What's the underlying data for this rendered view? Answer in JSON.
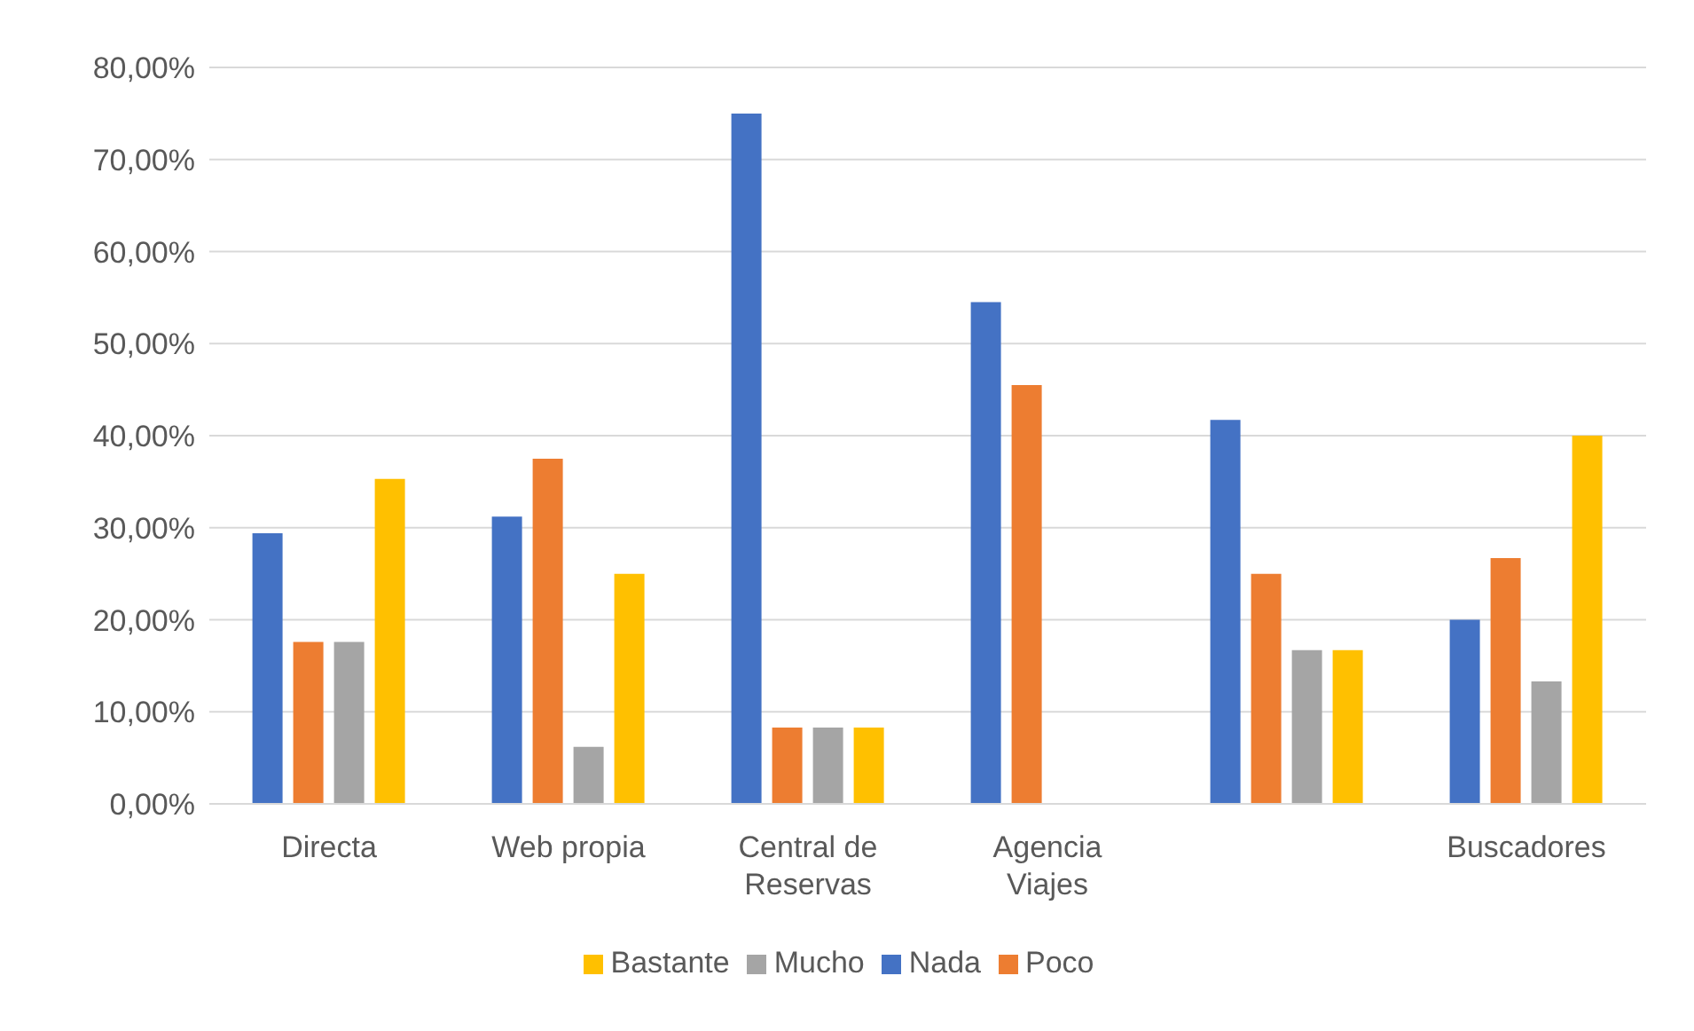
{
  "chart_data": {
    "type": "bar",
    "categories": [
      "Directa",
      "Web propia",
      "Central de Reservas",
      "Agencia Viajes",
      null,
      "Buscadores"
    ],
    "series": [
      {
        "name": "Nada",
        "color": "#4472c4",
        "values": [
          29.4,
          31.2,
          75.0,
          54.5,
          41.7,
          20.0
        ]
      },
      {
        "name": "Poco",
        "color": "#ed7d31",
        "values": [
          17.6,
          37.5,
          8.3,
          45.5,
          25.0,
          26.7
        ]
      },
      {
        "name": "Mucho",
        "color": "#a5a5a5",
        "values": [
          17.6,
          6.2,
          8.3,
          0,
          16.7,
          13.3
        ]
      },
      {
        "name": "Bastante",
        "color": "#ffc000",
        "values": [
          35.3,
          25.0,
          8.3,
          0,
          16.7,
          40.0
        ]
      }
    ],
    "ylim": [
      0,
      80
    ],
    "yticks": [
      {
        "value": 0,
        "label": "0,00%"
      },
      {
        "value": 10,
        "label": "10,00%"
      },
      {
        "value": 20,
        "label": "20,00%"
      },
      {
        "value": 30,
        "label": "30,00%"
      },
      {
        "value": 40,
        "label": "40,00%"
      },
      {
        "value": 50,
        "label": "50,00%"
      },
      {
        "value": 60,
        "label": "60,00%"
      },
      {
        "value": 70,
        "label": "70,00%"
      },
      {
        "value": 80,
        "label": "80,00%"
      }
    ],
    "grid": "y",
    "legend": "bottom"
  }
}
